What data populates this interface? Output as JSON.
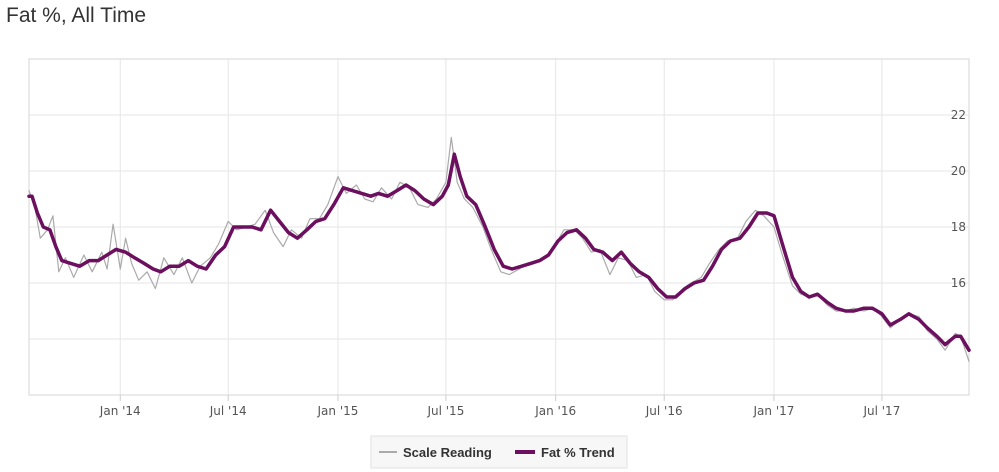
{
  "chart_data": {
    "type": "line",
    "title": "Fat %, All Time",
    "xlabel": "",
    "ylabel": "",
    "x_ticks": [
      "Jan '14",
      "Jul '14",
      "Jan '15",
      "Jul '15",
      "Jan '16",
      "Jul '16",
      "Jan '17",
      "Jul '17"
    ],
    "y_ticks": [
      "16",
      "18",
      "20",
      "22"
    ],
    "xlim": [
      "2013-08-01",
      "2017-11-24"
    ],
    "ylim": [
      12,
      24
    ],
    "grid": true,
    "legend_position": "bottom-center",
    "series": [
      {
        "name": "Scale Reading",
        "color": "#aaaaaa",
        "points": [
          [
            "2013-08-01",
            19.3
          ],
          [
            "2013-08-10",
            18.8
          ],
          [
            "2013-08-20",
            17.6
          ],
          [
            "2013-09-01",
            17.9
          ],
          [
            "2013-09-10",
            18.4
          ],
          [
            "2013-09-20",
            16.4
          ],
          [
            "2013-10-01",
            16.9
          ],
          [
            "2013-10-15",
            16.2
          ],
          [
            "2013-11-01",
            17.0
          ],
          [
            "2013-11-15",
            16.4
          ],
          [
            "2013-12-01",
            17.1
          ],
          [
            "2013-12-10",
            16.5
          ],
          [
            "2013-12-20",
            18.1
          ],
          [
            "2014-01-01",
            16.5
          ],
          [
            "2014-01-10",
            17.6
          ],
          [
            "2014-01-20",
            16.7
          ],
          [
            "2014-02-01",
            16.1
          ],
          [
            "2014-02-15",
            16.4
          ],
          [
            "2014-03-01",
            15.8
          ],
          [
            "2014-03-15",
            16.9
          ],
          [
            "2014-04-01",
            16.3
          ],
          [
            "2014-04-15",
            16.9
          ],
          [
            "2014-05-01",
            16.0
          ],
          [
            "2014-05-15",
            16.6
          ],
          [
            "2014-06-01",
            16.9
          ],
          [
            "2014-06-15",
            17.4
          ],
          [
            "2014-07-01",
            18.2
          ],
          [
            "2014-07-15",
            17.9
          ],
          [
            "2014-08-01",
            18.0
          ],
          [
            "2014-08-15",
            18.1
          ],
          [
            "2014-09-01",
            18.6
          ],
          [
            "2014-09-15",
            17.8
          ],
          [
            "2014-10-01",
            17.3
          ],
          [
            "2014-10-15",
            17.9
          ],
          [
            "2014-11-01",
            17.6
          ],
          [
            "2014-11-15",
            18.3
          ],
          [
            "2014-12-01",
            18.3
          ],
          [
            "2014-12-15",
            18.8
          ],
          [
            "2015-01-01",
            19.8
          ],
          [
            "2015-01-15",
            19.2
          ],
          [
            "2015-02-01",
            19.5
          ],
          [
            "2015-02-15",
            19.0
          ],
          [
            "2015-03-01",
            18.9
          ],
          [
            "2015-03-15",
            19.4
          ],
          [
            "2015-04-01",
            19.0
          ],
          [
            "2015-04-15",
            19.6
          ],
          [
            "2015-05-01",
            19.4
          ],
          [
            "2015-05-15",
            18.8
          ],
          [
            "2015-06-01",
            18.7
          ],
          [
            "2015-06-15",
            19.0
          ],
          [
            "2015-07-01",
            19.6
          ],
          [
            "2015-07-10",
            21.2
          ],
          [
            "2015-07-20",
            19.6
          ],
          [
            "2015-08-01",
            19.0
          ],
          [
            "2015-08-15",
            18.7
          ],
          [
            "2015-09-01",
            18.0
          ],
          [
            "2015-09-15",
            17.2
          ],
          [
            "2015-10-01",
            16.4
          ],
          [
            "2015-10-15",
            16.3
          ],
          [
            "2015-11-01",
            16.5
          ],
          [
            "2015-11-15",
            16.7
          ],
          [
            "2015-12-01",
            16.8
          ],
          [
            "2015-12-15",
            16.9
          ],
          [
            "2016-01-01",
            17.4
          ],
          [
            "2016-01-15",
            17.9
          ],
          [
            "2016-02-01",
            17.9
          ],
          [
            "2016-02-15",
            17.6
          ],
          [
            "2016-03-01",
            17.1
          ],
          [
            "2016-03-15",
            17.2
          ],
          [
            "2016-04-01",
            16.3
          ],
          [
            "2016-04-15",
            16.9
          ],
          [
            "2016-05-01",
            16.8
          ],
          [
            "2016-05-15",
            16.2
          ],
          [
            "2016-06-01",
            16.3
          ],
          [
            "2016-06-15",
            15.7
          ],
          [
            "2016-07-01",
            15.4
          ],
          [
            "2016-07-15",
            15.4
          ],
          [
            "2016-08-01",
            15.8
          ],
          [
            "2016-08-15",
            16.0
          ],
          [
            "2016-09-01",
            16.2
          ],
          [
            "2016-09-15",
            16.7
          ],
          [
            "2016-10-01",
            17.2
          ],
          [
            "2016-10-15",
            17.5
          ],
          [
            "2016-11-01",
            17.6
          ],
          [
            "2016-11-15",
            18.2
          ],
          [
            "2016-12-01",
            18.6
          ],
          [
            "2016-12-15",
            18.4
          ],
          [
            "2017-01-01",
            18.0
          ],
          [
            "2017-01-15",
            17.0
          ],
          [
            "2017-02-01",
            15.9
          ],
          [
            "2017-02-15",
            15.6
          ],
          [
            "2017-03-01",
            15.5
          ],
          [
            "2017-03-15",
            15.6
          ],
          [
            "2017-04-01",
            15.2
          ],
          [
            "2017-04-15",
            15.0
          ],
          [
            "2017-05-01",
            15.0
          ],
          [
            "2017-05-15",
            15.1
          ],
          [
            "2017-06-01",
            15.0
          ],
          [
            "2017-06-15",
            15.1
          ],
          [
            "2017-07-01",
            14.8
          ],
          [
            "2017-07-15",
            14.4
          ],
          [
            "2017-08-01",
            14.7
          ],
          [
            "2017-08-15",
            14.9
          ],
          [
            "2017-09-01",
            14.8
          ],
          [
            "2017-09-15",
            14.3
          ],
          [
            "2017-10-01",
            14.0
          ],
          [
            "2017-10-15",
            13.6
          ],
          [
            "2017-11-01",
            14.2
          ],
          [
            "2017-11-10",
            14.1
          ],
          [
            "2017-11-24",
            13.2
          ]
        ]
      },
      {
        "name": "Fat % Trend",
        "color": "#6b0f5e",
        "points": [
          [
            "2013-08-01",
            19.1
          ],
          [
            "2013-08-06",
            19.1
          ],
          [
            "2013-08-15",
            18.5
          ],
          [
            "2013-08-25",
            18.0
          ],
          [
            "2013-09-05",
            17.9
          ],
          [
            "2013-09-15",
            17.3
          ],
          [
            "2013-09-25",
            16.8
          ],
          [
            "2013-10-10",
            16.7
          ],
          [
            "2013-10-25",
            16.6
          ],
          [
            "2013-11-10",
            16.8
          ],
          [
            "2013-11-25",
            16.8
          ],
          [
            "2013-12-10",
            17.0
          ],
          [
            "2013-12-25",
            17.2
          ],
          [
            "2014-01-10",
            17.1
          ],
          [
            "2014-01-25",
            16.9
          ],
          [
            "2014-02-10",
            16.7
          ],
          [
            "2014-02-25",
            16.5
          ],
          [
            "2014-03-10",
            16.4
          ],
          [
            "2014-03-25",
            16.6
          ],
          [
            "2014-04-10",
            16.6
          ],
          [
            "2014-04-25",
            16.8
          ],
          [
            "2014-05-10",
            16.6
          ],
          [
            "2014-05-25",
            16.5
          ],
          [
            "2014-06-10",
            17.0
          ],
          [
            "2014-06-25",
            17.3
          ],
          [
            "2014-07-10",
            18.0
          ],
          [
            "2014-07-25",
            18.0
          ],
          [
            "2014-08-10",
            18.0
          ],
          [
            "2014-08-25",
            17.9
          ],
          [
            "2014-09-10",
            18.6
          ],
          [
            "2014-09-25",
            18.2
          ],
          [
            "2014-10-10",
            17.8
          ],
          [
            "2014-10-25",
            17.6
          ],
          [
            "2014-11-10",
            17.9
          ],
          [
            "2014-11-25",
            18.2
          ],
          [
            "2014-12-10",
            18.3
          ],
          [
            "2014-12-25",
            18.8
          ],
          [
            "2015-01-10",
            19.4
          ],
          [
            "2015-01-25",
            19.3
          ],
          [
            "2015-02-10",
            19.2
          ],
          [
            "2015-02-25",
            19.1
          ],
          [
            "2015-03-10",
            19.2
          ],
          [
            "2015-03-25",
            19.1
          ],
          [
            "2015-04-10",
            19.3
          ],
          [
            "2015-04-25",
            19.5
          ],
          [
            "2015-05-10",
            19.3
          ],
          [
            "2015-05-25",
            19.0
          ],
          [
            "2015-06-10",
            18.8
          ],
          [
            "2015-06-25",
            19.1
          ],
          [
            "2015-07-05",
            19.5
          ],
          [
            "2015-07-15",
            20.6
          ],
          [
            "2015-07-25",
            19.8
          ],
          [
            "2015-08-05",
            19.1
          ],
          [
            "2015-08-20",
            18.8
          ],
          [
            "2015-09-05",
            18.0
          ],
          [
            "2015-09-20",
            17.2
          ],
          [
            "2015-10-05",
            16.6
          ],
          [
            "2015-10-20",
            16.5
          ],
          [
            "2015-11-05",
            16.6
          ],
          [
            "2015-11-20",
            16.7
          ],
          [
            "2015-12-05",
            16.8
          ],
          [
            "2015-12-20",
            17.0
          ],
          [
            "2016-01-05",
            17.5
          ],
          [
            "2016-01-20",
            17.8
          ],
          [
            "2016-02-05",
            17.9
          ],
          [
            "2016-02-20",
            17.6
          ],
          [
            "2016-03-05",
            17.2
          ],
          [
            "2016-03-20",
            17.1
          ],
          [
            "2016-04-05",
            16.8
          ],
          [
            "2016-04-20",
            17.1
          ],
          [
            "2016-05-05",
            16.7
          ],
          [
            "2016-05-20",
            16.4
          ],
          [
            "2016-06-05",
            16.2
          ],
          [
            "2016-06-20",
            15.8
          ],
          [
            "2016-07-05",
            15.5
          ],
          [
            "2016-07-20",
            15.5
          ],
          [
            "2016-08-05",
            15.8
          ],
          [
            "2016-08-20",
            16.0
          ],
          [
            "2016-09-05",
            16.1
          ],
          [
            "2016-09-20",
            16.6
          ],
          [
            "2016-10-05",
            17.2
          ],
          [
            "2016-10-20",
            17.5
          ],
          [
            "2016-11-05",
            17.6
          ],
          [
            "2016-11-20",
            18.0
          ],
          [
            "2016-12-05",
            18.5
          ],
          [
            "2016-12-20",
            18.5
          ],
          [
            "2017-01-01",
            18.4
          ],
          [
            "2017-01-15",
            17.4
          ],
          [
            "2017-02-01",
            16.2
          ],
          [
            "2017-02-15",
            15.7
          ],
          [
            "2017-03-01",
            15.5
          ],
          [
            "2017-03-15",
            15.6
          ],
          [
            "2017-04-01",
            15.3
          ],
          [
            "2017-04-15",
            15.1
          ],
          [
            "2017-05-01",
            15.0
          ],
          [
            "2017-05-15",
            15.0
          ],
          [
            "2017-06-01",
            15.1
          ],
          [
            "2017-06-15",
            15.1
          ],
          [
            "2017-07-01",
            14.9
          ],
          [
            "2017-07-15",
            14.5
          ],
          [
            "2017-08-01",
            14.7
          ],
          [
            "2017-08-15",
            14.9
          ],
          [
            "2017-09-01",
            14.7
          ],
          [
            "2017-09-15",
            14.4
          ],
          [
            "2017-10-01",
            14.1
          ],
          [
            "2017-10-15",
            13.8
          ],
          [
            "2017-11-01",
            14.1
          ],
          [
            "2017-11-10",
            14.1
          ],
          [
            "2017-11-24",
            13.6
          ]
        ]
      }
    ]
  }
}
